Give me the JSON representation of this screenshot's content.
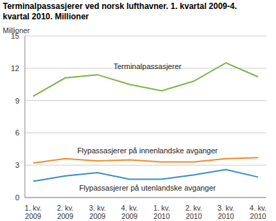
{
  "chart_data": {
    "type": "line",
    "title": "Terminalpassasjerer ved norsk lufthavner. 1. kvartal 2009-4. kvartal 2010. Millioner",
    "y_label": "Millioner",
    "categories": [
      "1. kv. 2009",
      "2. kv. 2009",
      "3. kv. 2009",
      "4. kv. 2009",
      "1. kv. 2010",
      "2. kv. 2010",
      "3. kv. 2010",
      "4. kv. 2010"
    ],
    "series": [
      {
        "name": "Terminalpassasjerer",
        "color": "#7ab648",
        "values": [
          9.4,
          11.1,
          11.4,
          10.5,
          9.9,
          10.8,
          12.5,
          11.2
        ]
      },
      {
        "name": "Flypassasjerer på innenlandske avganger",
        "color": "#f28c28",
        "values": [
          3.2,
          3.6,
          3.4,
          3.5,
          3.3,
          3.3,
          3.6,
          3.7
        ]
      },
      {
        "name": "Flypassasjerer på utenlandske avganger",
        "color": "#3a8fc5",
        "values": [
          1.5,
          2.0,
          2.3,
          1.7,
          1.7,
          2.1,
          2.6,
          1.9
        ]
      }
    ],
    "ylim": [
      0,
      15
    ],
    "yticks": [
      0,
      3,
      6,
      9,
      12,
      15
    ],
    "grid": true
  }
}
